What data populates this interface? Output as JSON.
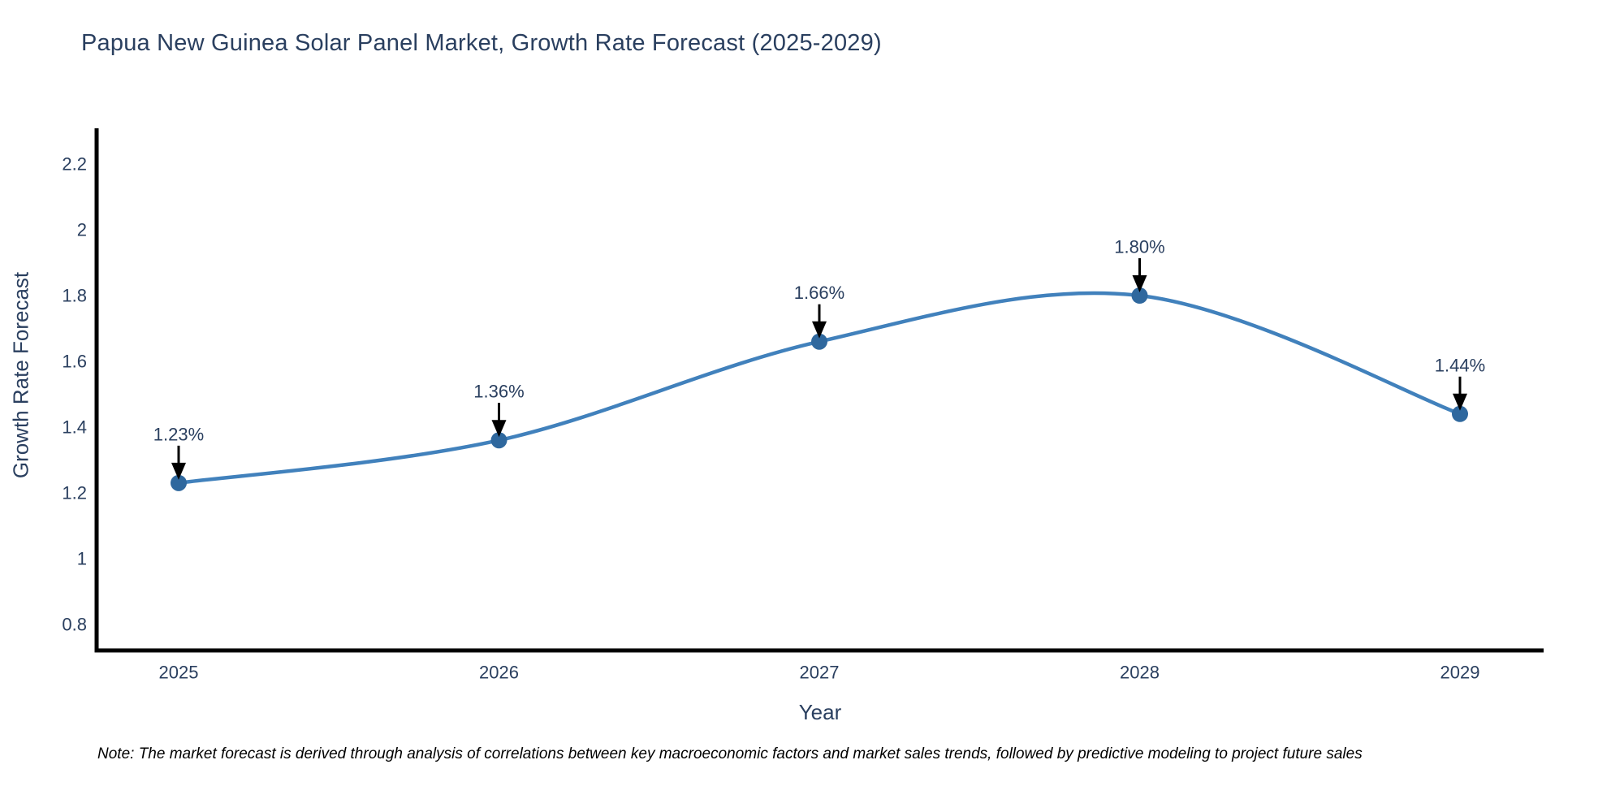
{
  "title": "Papua New Guinea Solar Panel Market, Growth Rate Forecast (2025-2029)",
  "note": "Note: The market forecast is derived through analysis of correlations between key macroeconomic factors and market sales trends, followed by predictive modeling to project future sales",
  "colors": {
    "background": "#ffffff",
    "title_text": "#2a3f5f",
    "tick_text": "#2a3f5f",
    "annotation_text": "#2a3f5f",
    "axis_line": "#000000",
    "series_line": "#4181bc",
    "marker_fill": "#2f689e",
    "arrow": "#000000",
    "note_text": "#000000"
  },
  "chart_data": {
    "type": "line",
    "title": "Papua New Guinea Solar Panel Market, Growth Rate Forecast (2025-2029)",
    "xlabel": "Year",
    "ylabel": "Growth Rate Forecast",
    "x": [
      2025,
      2026,
      2027,
      2028,
      2029
    ],
    "series": [
      {
        "name": "Growth Rate Forecast",
        "values": [
          1.23,
          1.36,
          1.66,
          1.8,
          1.44
        ]
      }
    ],
    "point_labels": [
      "1.23%",
      "1.36%",
      "1.66%",
      "1.80%",
      "1.44%"
    ],
    "line_shape": "spline",
    "markers": true,
    "annotation_arrows": true,
    "xtick_labels": [
      "2025",
      "2026",
      "2027",
      "2028",
      "2029"
    ],
    "ytick_values": [
      0.8,
      1,
      1.2,
      1.4,
      1.6,
      1.8,
      2,
      2.2
    ],
    "ytick_labels": [
      "0.8",
      "1",
      "1.2",
      "1.4",
      "1.6",
      "1.8",
      "2",
      "2.2"
    ],
    "ylim": [
      0.72,
      2.31
    ],
    "grid": false,
    "legend_visible": false
  }
}
